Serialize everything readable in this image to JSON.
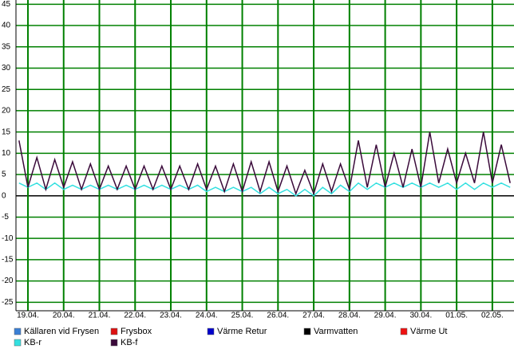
{
  "chart_data": {
    "type": "line",
    "categories": [
      null,
      "19.04.",
      null,
      null,
      null,
      "20.04.",
      null,
      null,
      null,
      "21.04.",
      null,
      null,
      null,
      "22.04.",
      null,
      null,
      null,
      "23.04.",
      null,
      null,
      null,
      "24.04.",
      null,
      null,
      null,
      "25.04.",
      null,
      null,
      null,
      "26.04.",
      null,
      null,
      null,
      "27.04.",
      null,
      null,
      null,
      "28.04.",
      null,
      null,
      null,
      "29.04.",
      null,
      null,
      null,
      "30.04.",
      null,
      null,
      null,
      "01.05.",
      null,
      null,
      null,
      "02.05.",
      null,
      null
    ],
    "series": [
      {
        "name": "Källaren vid Frysen",
        "color": "#3a7fd5",
        "values": [
          null,
          null,
          null,
          null,
          null,
          null,
          null,
          null,
          null,
          null,
          null,
          null,
          null,
          null,
          null,
          null,
          null,
          null,
          null,
          null,
          null,
          null,
          null,
          null,
          null,
          null,
          null,
          null,
          null,
          null,
          null,
          null,
          null,
          null,
          null,
          null,
          null,
          null,
          null,
          null,
          null,
          null,
          null,
          null,
          null,
          null,
          null,
          null,
          null,
          null,
          null,
          null,
          null,
          null,
          null,
          null
        ]
      },
      {
        "name": "Frysbox",
        "color": "#dd1111",
        "values": [
          null,
          null,
          null,
          null,
          null,
          null,
          null,
          null,
          null,
          null,
          null,
          null,
          null,
          null,
          null,
          null,
          null,
          null,
          null,
          null,
          null,
          null,
          null,
          null,
          null,
          null,
          null,
          null,
          null,
          null,
          null,
          null,
          null,
          null,
          null,
          null,
          null,
          null,
          null,
          null,
          null,
          null,
          null,
          null,
          null,
          null,
          null,
          null,
          null,
          null,
          null,
          null,
          null,
          null,
          null,
          null
        ]
      },
      {
        "name": "Värme Retur",
        "color": "#0000cc",
        "values": [
          null,
          null,
          null,
          null,
          null,
          null,
          null,
          null,
          null,
          null,
          null,
          null,
          null,
          null,
          null,
          null,
          null,
          null,
          null,
          null,
          null,
          null,
          null,
          null,
          null,
          null,
          null,
          null,
          null,
          null,
          null,
          null,
          null,
          null,
          null,
          null,
          null,
          null,
          null,
          null,
          null,
          null,
          null,
          null,
          null,
          null,
          null,
          null,
          null,
          null,
          null,
          null,
          null,
          null,
          null,
          null
        ]
      },
      {
        "name": "Varmvatten",
        "color": "#000000",
        "values": [
          null,
          null,
          null,
          null,
          null,
          null,
          null,
          null,
          null,
          null,
          null,
          null,
          null,
          null,
          null,
          null,
          null,
          null,
          null,
          null,
          null,
          null,
          null,
          null,
          null,
          null,
          null,
          null,
          null,
          null,
          null,
          null,
          null,
          null,
          null,
          null,
          null,
          null,
          null,
          null,
          null,
          null,
          null,
          null,
          null,
          null,
          null,
          null,
          null,
          null,
          null,
          null,
          null,
          null,
          null,
          null
        ]
      },
      {
        "name": "Värme Ut",
        "color": "#ee1111",
        "values": [
          null,
          null,
          null,
          null,
          null,
          null,
          null,
          null,
          null,
          null,
          null,
          null,
          null,
          null,
          null,
          null,
          null,
          null,
          null,
          null,
          null,
          null,
          null,
          null,
          null,
          null,
          null,
          null,
          null,
          null,
          null,
          null,
          null,
          null,
          null,
          null,
          null,
          null,
          null,
          null,
          null,
          null,
          null,
          null,
          null,
          null,
          null,
          null,
          null,
          null,
          null,
          null,
          null,
          null,
          null,
          null
        ]
      },
      {
        "name": "KB-r",
        "color": "#33e0e0",
        "values": [
          3,
          2,
          3,
          1.5,
          3,
          1.5,
          2.5,
          1.5,
          2.5,
          1.5,
          2.5,
          1.5,
          2.5,
          1.5,
          2.5,
          1.5,
          2.5,
          1.5,
          2.5,
          1.5,
          2.5,
          1,
          2,
          1,
          2,
          1,
          2,
          0.5,
          2,
          0.5,
          1.5,
          0,
          1.5,
          0,
          2,
          0.5,
          2.5,
          1,
          3,
          1.5,
          3,
          2,
          3,
          2,
          3,
          2,
          3,
          2,
          3,
          1.5,
          3,
          1.5,
          3,
          2,
          3,
          2
        ]
      },
      {
        "name": "KB-f",
        "color": "#3a0a3a",
        "values": [
          13,
          2,
          9,
          1.5,
          8.5,
          2,
          8,
          1.5,
          7.5,
          1.5,
          7,
          1.5,
          7,
          1.5,
          7,
          1.5,
          7,
          1.5,
          7,
          1.5,
          7.5,
          1.5,
          7,
          1,
          7.5,
          1,
          8,
          1,
          8,
          1,
          7,
          0.5,
          6,
          0.5,
          7.5,
          1,
          7.5,
          1.5,
          13,
          2,
          12,
          2,
          10,
          2,
          11,
          2,
          15,
          3,
          11,
          3,
          10,
          3,
          15,
          3,
          12,
          3
        ]
      }
    ],
    "ylim": [
      -27,
      46
    ],
    "yticks": [
      -25,
      -20,
      -15,
      -10,
      -5,
      0,
      5,
      10,
      15,
      20,
      25,
      30,
      35,
      40,
      45
    ],
    "grid": true,
    "grid_color": "#008000"
  }
}
